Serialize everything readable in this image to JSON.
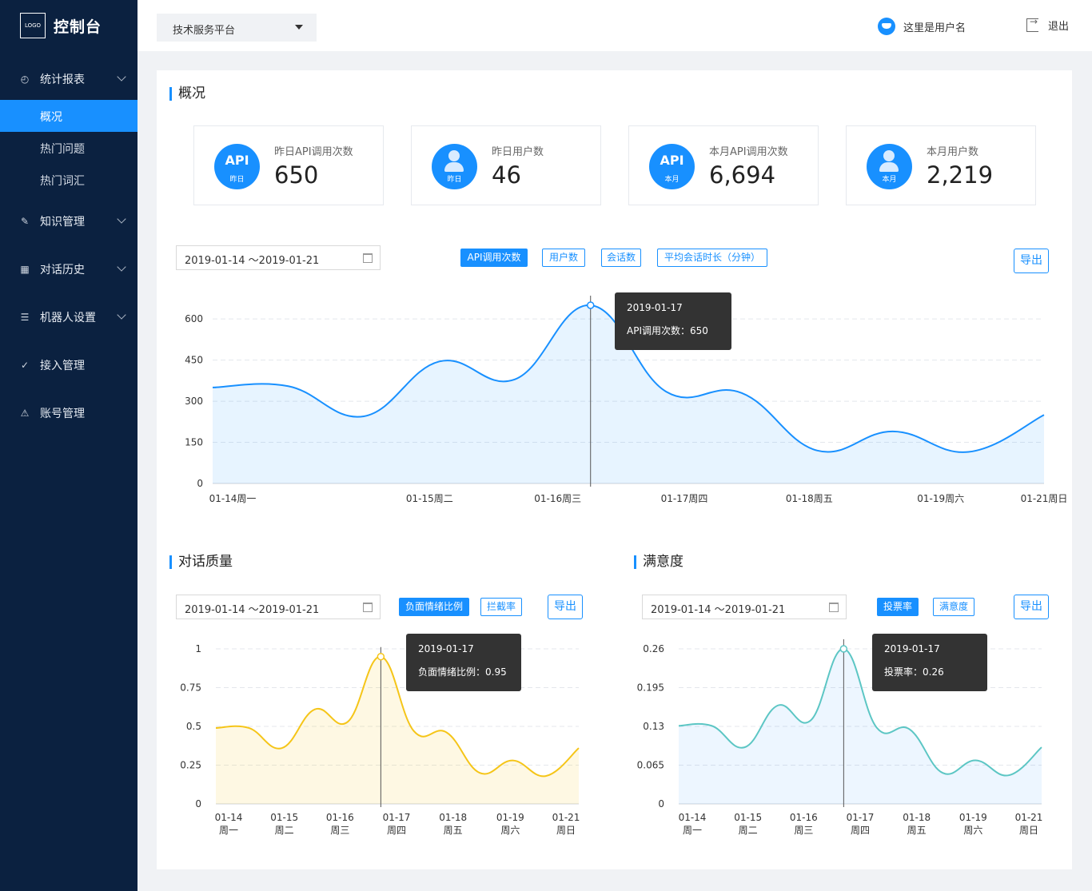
{
  "app": {
    "logo_text": "LOGO",
    "title": "控制台"
  },
  "sidebar": {
    "items": [
      {
        "label": "统计报表",
        "icon": "dashboard-icon",
        "expandable": true
      },
      {
        "label": "知识管理",
        "icon": "edit-icon",
        "expandable": true
      },
      {
        "label": "对话历史",
        "icon": "table-icon",
        "expandable": true
      },
      {
        "label": "机器人设置",
        "icon": "list-icon",
        "expandable": true
      },
      {
        "label": "接入管理",
        "icon": "check-circle-icon",
        "expandable": false
      },
      {
        "label": "账号管理",
        "icon": "warning-icon",
        "expandable": false
      }
    ],
    "submenu": [
      {
        "label": "概况",
        "active": true
      },
      {
        "label": "热门问题",
        "active": false
      },
      {
        "label": "热门词汇",
        "active": false
      }
    ]
  },
  "header": {
    "platform_select": "技术服务平台",
    "username": "这里是用户名",
    "logout": "退出"
  },
  "overview": {
    "title": "概况",
    "cards": [
      {
        "badge": "API",
        "badge_sub": "昨日",
        "label": "昨日API调用次数",
        "value": "650"
      },
      {
        "badge": "",
        "badge_sub": "昨日",
        "label": "昨日用户数",
        "value": "46"
      },
      {
        "badge": "API",
        "badge_sub": "本月",
        "label": "本月API调用次数",
        "value": "6,694"
      },
      {
        "badge": "",
        "badge_sub": "本月",
        "label": "本月用户数",
        "value": "2,219"
      }
    ],
    "date_range": "2019-01-14  ～2019-01-21",
    "tabs": [
      "API调用次数",
      "用户数",
      "会话数",
      "平均会话时长（分钟）"
    ],
    "active_tab": 0,
    "export": "导出",
    "tooltip": {
      "date": "2019-01-17",
      "text": "API调用次数：650"
    }
  },
  "quality": {
    "title": "对话质量",
    "date_range": "2019-01-14  ～2019-01-21",
    "tabs": [
      "负面情绪比例",
      "拦截率"
    ],
    "active_tab": 0,
    "export": "导出",
    "tooltip": {
      "date": "2019-01-17",
      "text": "负面情绪比例：0.95"
    }
  },
  "satisfaction": {
    "title": "满意度",
    "date_range": "2019-01-14  ～2019-01-21",
    "tabs": [
      "投票率",
      "满意度"
    ],
    "active_tab": 0,
    "export": "导出",
    "tooltip": {
      "date": "2019-01-17",
      "text": "投票率：0.26"
    }
  },
  "colors": {
    "sidebar": "#0b2140",
    "accent": "#1890ff",
    "yellow": "#f5c518",
    "teal": "#5cc6c4"
  },
  "chart_data": [
    {
      "type": "area",
      "series": [
        {
          "name": "API调用次数",
          "values": [
            350,
            355,
            245,
            445,
            380,
            650,
            335,
            330,
            120,
            190,
            115,
            250
          ]
        }
      ],
      "x": [
        "01-14",
        "",
        "01-15",
        "",
        "01-16",
        "01-17",
        "",
        "01-18",
        "",
        "01-19",
        "",
        "01-21"
      ],
      "tick_labels": [
        "01-14周一",
        "01-15周二",
        "01-16周三",
        "01-17周四",
        "01-18周五",
        "01-19周六",
        "01-21周日"
      ],
      "y_ticks": [
        0,
        150,
        300,
        450,
        600
      ],
      "ylim": [
        0,
        720
      ],
      "grid": true,
      "highlight_index": 5
    },
    {
      "type": "area",
      "series": [
        {
          "name": "负面情绪比例",
          "values": [
            0.49,
            0.49,
            0.36,
            0.61,
            0.53,
            0.95,
            0.47,
            0.46,
            0.2,
            0.28,
            0.18,
            0.36
          ]
        }
      ],
      "tick_labels": [
        [
          "01-14",
          "周一"
        ],
        [
          "01-15",
          "周二"
        ],
        [
          "01-16",
          "周三"
        ],
        [
          "01-17",
          "周四"
        ],
        [
          "01-18",
          "周五"
        ],
        [
          "01-19",
          "周六"
        ],
        [
          "01-21",
          "周日"
        ]
      ],
      "y_ticks": [
        0,
        0.25,
        0.5,
        0.75,
        1
      ],
      "ylim": [
        0,
        1
      ],
      "grid": true,
      "highlight_index": 5
    },
    {
      "type": "area",
      "series": [
        {
          "name": "投票率",
          "values": [
            0.131,
            0.131,
            0.095,
            0.165,
            0.14,
            0.26,
            0.128,
            0.125,
            0.052,
            0.073,
            0.048,
            0.095
          ]
        }
      ],
      "tick_labels": [
        [
          "01-14",
          "周一"
        ],
        [
          "01-15",
          "周二"
        ],
        [
          "01-16",
          "周三"
        ],
        [
          "01-17",
          "周四"
        ],
        [
          "01-18",
          "周五"
        ],
        [
          "01-19",
          "周六"
        ],
        [
          "01-21",
          "周日"
        ]
      ],
      "y_ticks": [
        0,
        0.065,
        0.13,
        0.195,
        0.26
      ],
      "ylim": [
        0,
        0.26
      ],
      "grid": true,
      "highlight_index": 5
    }
  ]
}
